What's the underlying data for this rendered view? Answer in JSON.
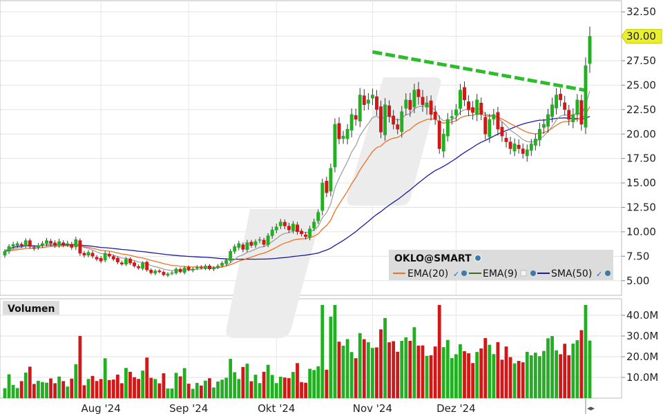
{
  "chart_data": {
    "type": "candlestick",
    "symbol": "OKLO@SMART",
    "price_ticks": [
      "32.50",
      "30.00",
      "27.50",
      "25.00",
      "22.50",
      "20.00",
      "17.50",
      "15.00",
      "12.50",
      "10.00",
      "7.50",
      "5.00"
    ],
    "price_range": [
      3.5,
      33.5
    ],
    "last_price_label": "30.00",
    "last_price": 30.0,
    "volume_ticks": [
      "40.0M",
      "30.0M",
      "20.0M",
      "10.0M"
    ],
    "volume_range": [
      0,
      48
    ],
    "volume_title": "Volumen",
    "x_labels": [
      {
        "label": "Aug '24",
        "index": 23
      },
      {
        "label": "Sep '24",
        "index": 44
      },
      {
        "label": "Okt '24",
        "index": 65
      },
      {
        "label": "Nov '24",
        "index": 88
      },
      {
        "label": "Dez '24",
        "index": 108
      }
    ],
    "legend": [
      {
        "name": "EMA(20)",
        "color": "#f07020"
      },
      {
        "name": "EMA(9)",
        "color": "#3d6b1f"
      },
      {
        "name": "SMA(50)",
        "color": "#1a1aa8"
      }
    ],
    "colors": {
      "up": "#20b020",
      "down": "#d01818",
      "trendline": "#2cbc2c",
      "price_tag": "#e8f030"
    },
    "trendline": {
      "start": {
        "index": 88,
        "price": 28.4
      },
      "end": {
        "index": 137,
        "price": 24.5
      }
    },
    "close": [
      8.0,
      8.5,
      8.7,
      8.8,
      8.6,
      9.1,
      8.5,
      8.3,
      8.6,
      8.8,
      9.1,
      8.8,
      8.6,
      9.0,
      8.7,
      8.8,
      8.4,
      9.2,
      7.8,
      7.6,
      7.9,
      7.5,
      7.2,
      7.0,
      7.8,
      7.5,
      7.2,
      6.9,
      6.7,
      7.2,
      6.8,
      6.5,
      6.3,
      6.8,
      6.1,
      5.8,
      6.0,
      5.9,
      5.6,
      5.7,
      5.8,
      6.2,
      5.9,
      6.3,
      6.1,
      6.2,
      6.4,
      6.3,
      6.5,
      6.2,
      6.3,
      6.5,
      6.8,
      7.1,
      8.0,
      8.5,
      8.8,
      8.2,
      8.9,
      8.6,
      9.0,
      9.2,
      8.7,
      9.6,
      10.2,
      10.5,
      11.0,
      10.6,
      10.2,
      10.8,
      10.0,
      9.8,
      9.5,
      10.3,
      11.0,
      12.0,
      15.0,
      14.0,
      16.5,
      21.0,
      19.5,
      19.8,
      20.5,
      22.0,
      21.5,
      24.0,
      23.0,
      23.5,
      24.0,
      22.5,
      20.2,
      23.0,
      21.8,
      21.0,
      20.5,
      22.3,
      23.5,
      22.5,
      24.5,
      23.8,
      23.0,
      23.2,
      22.0,
      21.5,
      18.5,
      20.0,
      21.5,
      21.8,
      22.5,
      24.5,
      23.5,
      22.5,
      22.2,
      23.5,
      22.0,
      20.0,
      21.5,
      22.0,
      20.5,
      19.8,
      19.2,
      18.5,
      19.0,
      18.5,
      18.0,
      18.4,
      19.0,
      19.5,
      20.5,
      21.0,
      22.0,
      23.0,
      24.0,
      23.5,
      22.5,
      21.5,
      22.0,
      23.5,
      21.0,
      27.0,
      30.0
    ]
  }
}
